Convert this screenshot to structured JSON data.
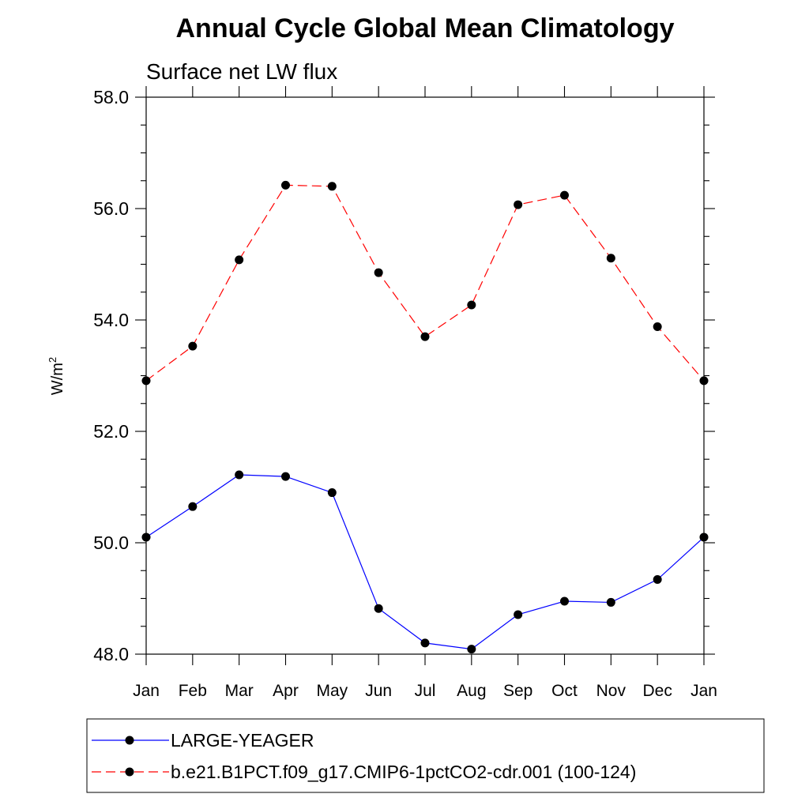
{
  "chart_data": {
    "type": "line",
    "title": "Annual Cycle Global Mean Climatology",
    "subtitle": "Surface net LW flux",
    "xlabel": "",
    "ylabel": "W/m",
    "ylabel_superscript": "2",
    "categories": [
      "Jan",
      "Feb",
      "Mar",
      "Apr",
      "May",
      "Jun",
      "Jul",
      "Aug",
      "Sep",
      "Oct",
      "Nov",
      "Dec",
      "Jan"
    ],
    "ylim": [
      48.0,
      58.0
    ],
    "yticks": [
      "48.0",
      "50.0",
      "52.0",
      "54.0",
      "56.0",
      "58.0"
    ],
    "series": [
      {
        "name": "LARGE-YEAGER",
        "color": "#0000ff",
        "dash": "solid",
        "values": [
          50.1,
          50.65,
          51.22,
          51.19,
          50.9,
          48.82,
          48.2,
          48.09,
          48.71,
          48.95,
          48.93,
          49.34,
          50.1
        ]
      },
      {
        "name": "b.e21.B1PCT.f09_g17.CMIP6-1pctCO2-cdr.001 (100-124)",
        "color": "#ff0000",
        "dash": "dashed",
        "values": [
          52.91,
          53.53,
          55.08,
          56.42,
          56.4,
          54.85,
          53.7,
          54.27,
          56.07,
          56.24,
          55.11,
          53.88,
          52.91
        ]
      }
    ],
    "grid": false,
    "legend": "bottom"
  }
}
